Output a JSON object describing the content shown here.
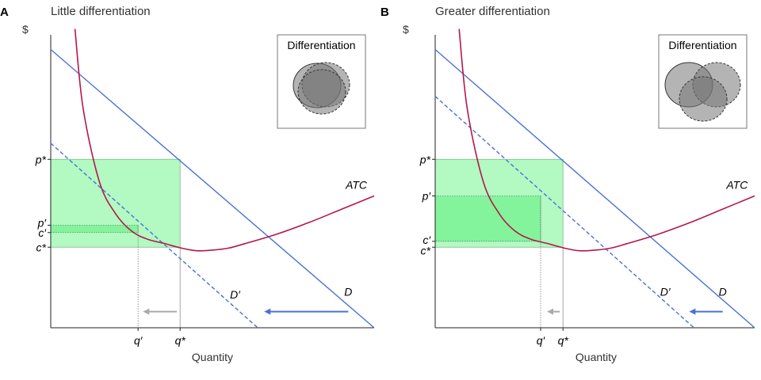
{
  "chart_data": [
    {
      "type": "line",
      "panel": "A",
      "title": "Little differentiation",
      "ylabel": "$",
      "xlabel": "Quantity",
      "xlim": [
        0,
        10
      ],
      "ylim": [
        0,
        10
      ],
      "grid": false,
      "curves": {
        "demand": {
          "label": "D",
          "points": [
            [
              0,
              9.5
            ],
            [
              10,
              0
            ]
          ],
          "color": "#4a72d6",
          "style": "solid"
        },
        "demand_new": {
          "label": "D′",
          "points": [
            [
              0,
              6.3
            ],
            [
              6.4,
              0
            ]
          ],
          "color": "#4a72d6",
          "style": "dashed"
        },
        "atc": {
          "label": "ATC",
          "points": [
            [
              0.75,
              10.2
            ],
            [
              1.0,
              7.5
            ],
            [
              1.5,
              5.0
            ],
            [
              2.0,
              3.9
            ],
            [
              2.5,
              3.3
            ],
            [
              3.0,
              3.02
            ],
            [
              3.5,
              2.88
            ],
            [
              4.0,
              2.73
            ],
            [
              4.5,
              2.63
            ],
            [
              5.0,
              2.65
            ],
            [
              5.5,
              2.72
            ],
            [
              6.0,
              2.87
            ],
            [
              7.0,
              3.2
            ],
            [
              8.0,
              3.6
            ],
            [
              9.0,
              4.05
            ],
            [
              10.0,
              4.5
            ]
          ],
          "color": "#b5174a"
        }
      },
      "rect_original": {
        "q": 4.0,
        "p": 5.75,
        "c": 2.75
      },
      "rect_new": {
        "q": 2.7,
        "p": 3.5,
        "c": 3.25
      },
      "ticks_y": [
        {
          "label": "p*",
          "value": 5.75
        },
        {
          "label": "p′",
          "value": 3.5
        },
        {
          "label": "c′",
          "value": 3.25
        },
        {
          "label": "c*",
          "value": 2.75
        }
      ],
      "ticks_x": [
        {
          "label": "q′",
          "value": 2.7
        },
        {
          "label": "q*",
          "value": 4.0
        }
      ],
      "arrows": [
        {
          "from": 9.2,
          "to": 6.6,
          "y": 0.55,
          "color": "#4a72d6"
        },
        {
          "from": 3.9,
          "to": 2.85,
          "y": 0.55,
          "color": "#aaaaaa"
        }
      ],
      "label_positions": {
        "ATC": [
          9.45,
          4.75
        ],
        "D": [
          9.2,
          1.1
        ],
        "D′": [
          5.7,
          1.0
        ]
      },
      "inset": {
        "title": "Differentiation",
        "overlap": "large"
      }
    },
    {
      "type": "line",
      "panel": "B",
      "title": "Greater differentiation",
      "ylabel": "$",
      "xlabel": "Quantity",
      "xlim": [
        0,
        10
      ],
      "ylim": [
        0,
        10
      ],
      "grid": false,
      "curves": {
        "demand": {
          "label": "D",
          "points": [
            [
              0,
              9.5
            ],
            [
              10,
              0
            ]
          ],
          "color": "#4a72d6",
          "style": "solid"
        },
        "demand_new": {
          "label": "D′",
          "points": [
            [
              0,
              7.9
            ],
            [
              8.1,
              0
            ]
          ],
          "color": "#4a72d6",
          "style": "dashed"
        },
        "atc": {
          "label": "ATC",
          "points": [
            [
              0.75,
              10.2
            ],
            [
              1.0,
              7.5
            ],
            [
              1.5,
              5.0
            ],
            [
              2.0,
              3.9
            ],
            [
              2.5,
              3.3
            ],
            [
              3.0,
              3.02
            ],
            [
              3.5,
              2.88
            ],
            [
              4.0,
              2.73
            ],
            [
              4.5,
              2.63
            ],
            [
              5.0,
              2.65
            ],
            [
              5.5,
              2.72
            ],
            [
              6.0,
              2.87
            ],
            [
              7.0,
              3.2
            ],
            [
              8.0,
              3.6
            ],
            [
              9.0,
              4.05
            ],
            [
              10.0,
              4.5
            ]
          ],
          "color": "#b5174a"
        }
      },
      "rect_original": {
        "q": 4.0,
        "p": 5.75,
        "c": 2.75
      },
      "rect_new": {
        "q": 3.3,
        "p": 4.5,
        "c": 2.95
      },
      "ticks_y": [
        {
          "label": "p*",
          "value": 5.75
        },
        {
          "label": "p′",
          "value": 4.5
        },
        {
          "label": "c′",
          "value": 2.95
        },
        {
          "label": "c*",
          "value": 2.75
        }
      ],
      "ticks_x": [
        {
          "label": "q′",
          "value": 3.3
        },
        {
          "label": "q*",
          "value": 4.0
        }
      ],
      "arrows": [
        {
          "from": 9.0,
          "to": 7.95,
          "y": 0.55,
          "color": "#4a72d6"
        },
        {
          "from": 3.9,
          "to": 3.5,
          "y": 0.55,
          "color": "#aaaaaa"
        }
      ],
      "label_positions": {
        "ATC": [
          9.45,
          4.75
        ],
        "D": [
          9.0,
          1.1
        ],
        "D′": [
          7.2,
          1.1
        ]
      },
      "inset": {
        "title": "Differentiation",
        "overlap": "small"
      }
    }
  ]
}
